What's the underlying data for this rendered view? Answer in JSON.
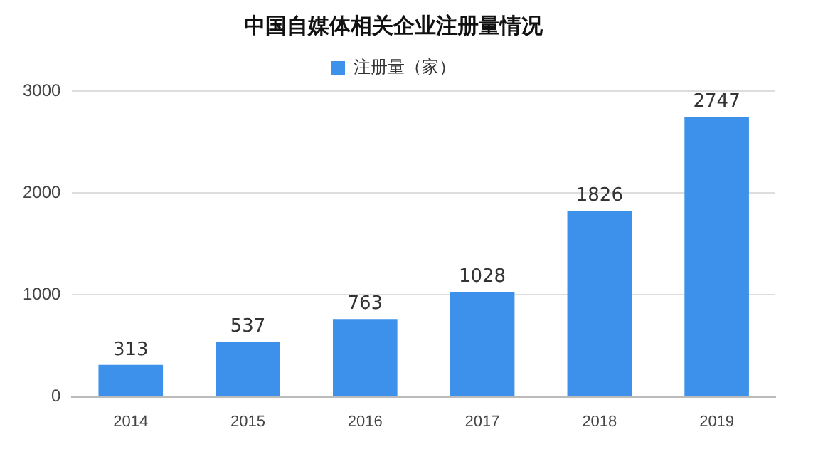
{
  "chart_data": {
    "type": "bar",
    "title": "中国自媒体相关企业注册量情况",
    "categories": [
      "2014",
      "2015",
      "2016",
      "2017",
      "2018",
      "2019"
    ],
    "series": [
      {
        "name": "注册量（家）",
        "color": "#3d91ea",
        "values": [
          313,
          537,
          763,
          1028,
          1826,
          2747
        ]
      }
    ],
    "ylim": [
      0,
      3000
    ],
    "yticks": [
      0,
      1000,
      2000,
      3000
    ],
    "grid": "y",
    "legend": "top",
    "data_labels": true
  }
}
